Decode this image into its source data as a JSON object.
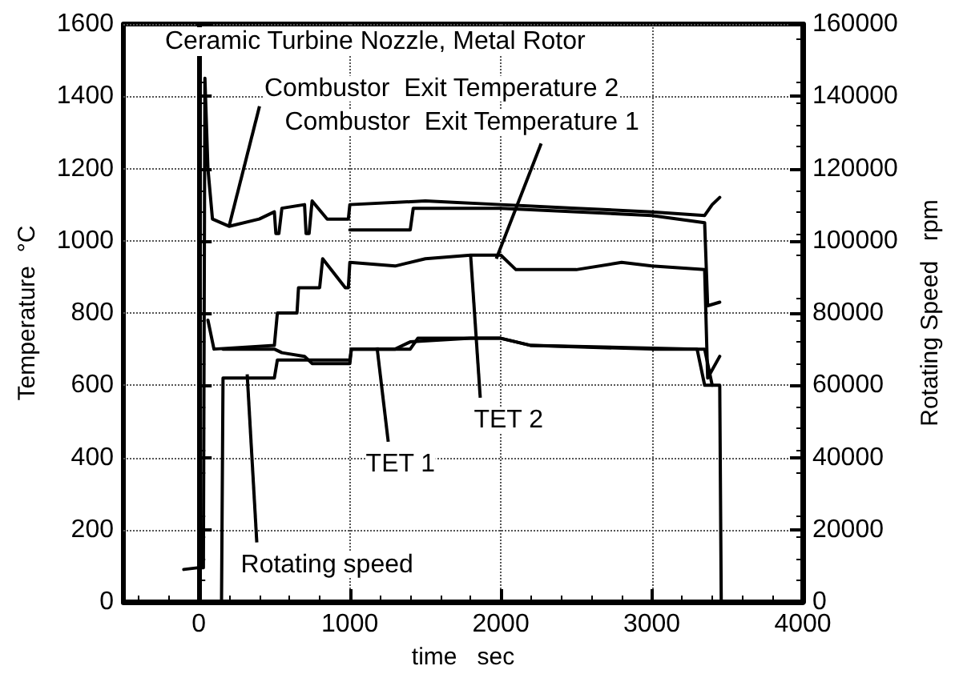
{
  "chart_data": {
    "type": "line",
    "title": "Ceramic Turbine Nozzle, Metal Rotor",
    "xlabel": "time   sec",
    "ylabel": "Temperature  °C",
    "y2label": "Rotating Speed   rpm",
    "xlim": [
      -500,
      4000
    ],
    "xticks": [
      0,
      1000,
      2000,
      3000,
      4000
    ],
    "ylim": [
      0,
      1600
    ],
    "yticks": [
      0,
      200,
      400,
      600,
      800,
      1000,
      1200,
      1400,
      1600
    ],
    "y2lim": [
      0,
      160000
    ],
    "y2ticks": [
      0,
      20000,
      40000,
      60000,
      80000,
      100000,
      120000,
      140000,
      160000
    ],
    "grid": true,
    "marker": "none",
    "line_style": "solid",
    "series": [
      {
        "color": "#000000",
        "x": [
          -100,
          0,
          30,
          40,
          60,
          90,
          200,
          400,
          500,
          510,
          530,
          550,
          700,
          710,
          730,
          750,
          850,
          990,
          1000,
          1500,
          2000,
          2500,
          3000,
          3350,
          3400,
          3450
        ],
        "values": [
          90,
          95,
          95,
          1450,
          1200,
          1060,
          1040,
          1060,
          1080,
          1020,
          1020,
          1090,
          1100,
          1020,
          1020,
          1110,
          1060,
          1060,
          1100,
          1110,
          1100,
          1090,
          1080,
          1070,
          1100,
          1120
        ]
      },
      {
        "color": "#000000",
        "x": [
          1000,
          1400,
          1420,
          2000,
          3000,
          3350,
          3370,
          3450
        ],
        "values": [
          1030,
          1030,
          1090,
          1090,
          1070,
          1050,
          820,
          830
        ]
      },
      {
        "color": "#000000",
        "x": [
          60,
          100,
          500,
          520,
          650,
          660,
          800,
          820,
          970,
          990,
          1000,
          1300,
          1500,
          1800,
          2000,
          2100,
          2500,
          2800,
          3000,
          3350,
          3370,
          3450
        ],
        "values": [
          780,
          700,
          710,
          800,
          800,
          870,
          870,
          950,
          870,
          870,
          940,
          930,
          950,
          960,
          960,
          920,
          920,
          940,
          930,
          920,
          620,
          680
        ]
      },
      {
        "color": "#000000",
        "x": [
          160,
          500,
          550,
          700,
          750,
          1000,
          1010,
          1300,
          1400,
          1800,
          2000,
          2200,
          3000,
          3350,
          3400
        ],
        "values": [
          700,
          700,
          690,
          680,
          660,
          660,
          700,
          700,
          720,
          730,
          730,
          710,
          700,
          700,
          600
        ]
      },
      {
        "color": "#000000",
        "axis": "y2",
        "x": [
          150,
          160,
          500,
          520,
          1000,
          1010,
          1400,
          1450,
          2000,
          2200,
          3300,
          3350,
          3450,
          3460
        ],
        "values": [
          0,
          62000,
          62000,
          67000,
          67000,
          70000,
          70000,
          73000,
          73000,
          71000,
          70000,
          60000,
          60000,
          0
        ]
      }
    ],
    "annotations": [
      {
        "text": "Combustor  Exit Temperature 2",
        "x": 200,
        "y": 1040
      },
      {
        "text": "Combustor  Exit Temperature 1",
        "x": 1970,
        "y": 950
      },
      {
        "text": "TET 2",
        "x": 1800,
        "y": 960
      },
      {
        "text": "TET 1",
        "x": 1180,
        "y": 705
      },
      {
        "text": "Rotating speed",
        "x": 320,
        "y": 630
      }
    ]
  }
}
